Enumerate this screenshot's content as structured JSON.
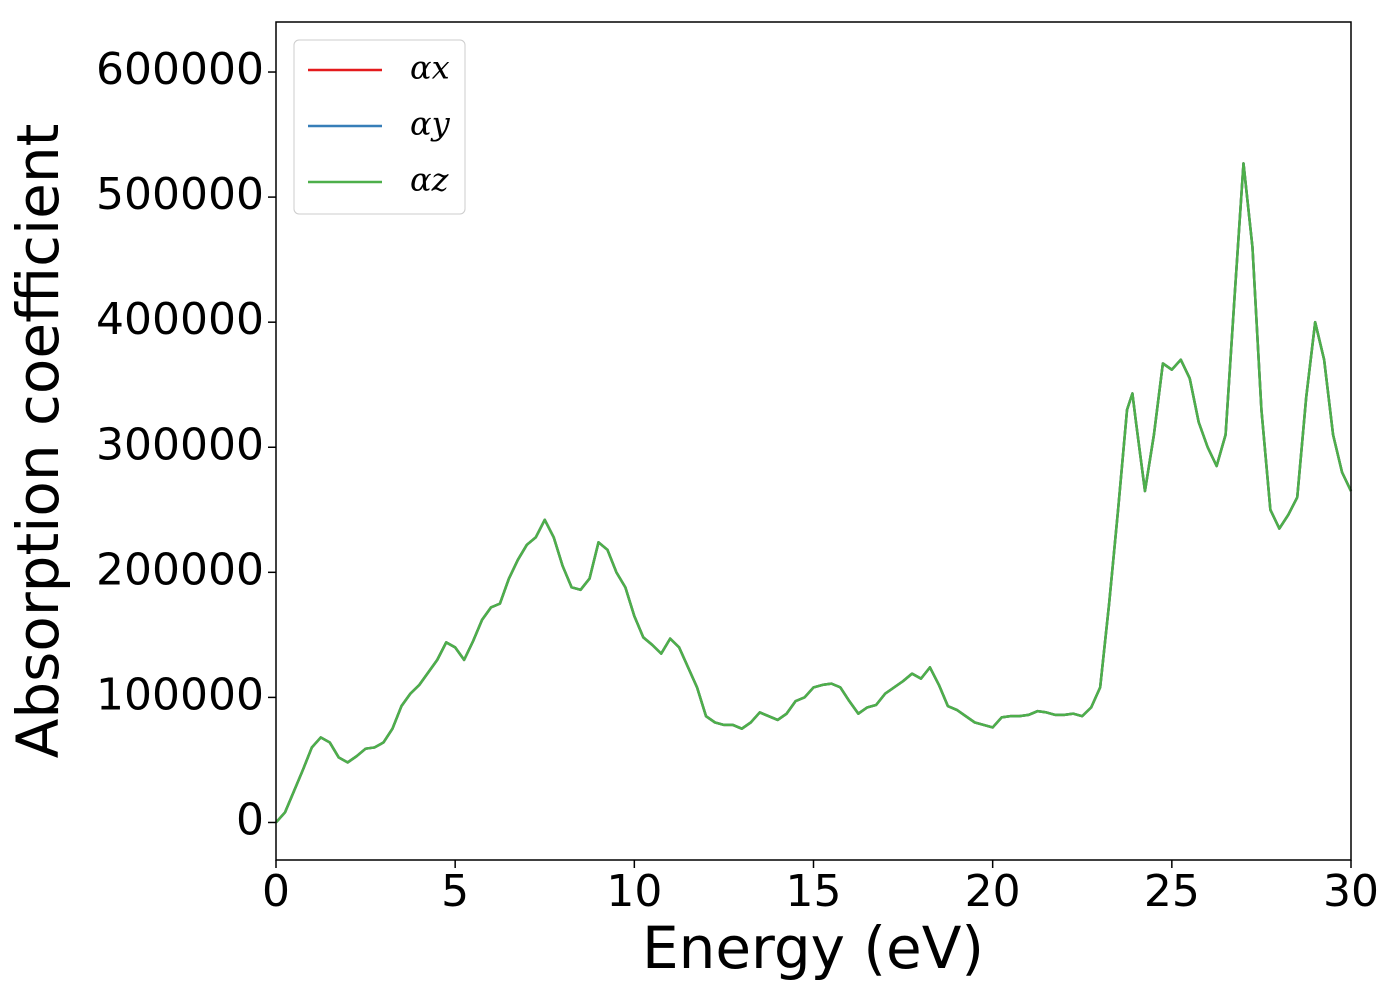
{
  "chart_data": {
    "type": "line",
    "xlabel": "Energy (eV)",
    "ylabel": "Absorption coefficient",
    "xlim": [
      0,
      30
    ],
    "ylim": [
      -30000,
      640000
    ],
    "xticks": [
      0,
      5,
      10,
      15,
      20,
      25,
      30
    ],
    "yticks": [
      0,
      100000,
      200000,
      300000,
      400000,
      500000,
      600000
    ],
    "legend": "upper left",
    "x": [
      0,
      0.25,
      0.5,
      0.75,
      1,
      1.25,
      1.5,
      1.75,
      2,
      2.25,
      2.5,
      2.75,
      3,
      3.25,
      3.5,
      3.75,
      4,
      4.25,
      4.5,
      4.75,
      5,
      5.25,
      5.5,
      5.75,
      6,
      6.25,
      6.5,
      6.75,
      7,
      7.25,
      7.5,
      7.75,
      8,
      8.25,
      8.5,
      8.75,
      9,
      9.25,
      9.5,
      9.75,
      10,
      10.25,
      10.5,
      10.75,
      11,
      11.25,
      11.5,
      11.75,
      12,
      12.25,
      12.5,
      12.75,
      13,
      13.25,
      13.5,
      13.75,
      14,
      14.25,
      14.5,
      14.75,
      15,
      15.25,
      15.5,
      15.75,
      16,
      16.25,
      16.5,
      16.75,
      17,
      17.25,
      17.5,
      17.75,
      18,
      18.25,
      18.5,
      18.75,
      19,
      19.25,
      19.5,
      19.75,
      20,
      20.25,
      20.5,
      20.75,
      21,
      21.25,
      21.5,
      21.75,
      22,
      22.25,
      22.5,
      22.75,
      23,
      23.25,
      23.5,
      23.75,
      23.9,
      24,
      24.25,
      24.5,
      24.75,
      25,
      25.25,
      25.5,
      25.75,
      26,
      26.25,
      26.5,
      26.75,
      27,
      27.25,
      27.5,
      27.75,
      28,
      28.25,
      28.5,
      28.75,
      29,
      29.25,
      29.5,
      29.75,
      30
    ],
    "series": [
      {
        "name": "αx",
        "color": "#e41a1c",
        "values": [
          0,
          8000,
          25000,
          42000,
          60000,
          68000,
          64000,
          52000,
          48000,
          53000,
          59000,
          60000,
          64000,
          75000,
          93000,
          103000,
          110000,
          120000,
          130000,
          144000,
          140000,
          130000,
          145000,
          162000,
          172000,
          175000,
          195000,
          210000,
          222000,
          228000,
          242000,
          228000,
          205000,
          188000,
          186000,
          195000,
          224000,
          218000,
          200000,
          188000,
          165000,
          148000,
          142000,
          135000,
          147000,
          140000,
          124000,
          108000,
          85000,
          80000,
          78000,
          78000,
          75000,
          80000,
          88000,
          85000,
          82000,
          87000,
          97000,
          100000,
          108000,
          110000,
          111000,
          108000,
          97000,
          87000,
          92000,
          94000,
          103000,
          108000,
          113000,
          119000,
          115000,
          124000,
          110000,
          93000,
          90000,
          85000,
          80000,
          78000,
          76000,
          84000,
          85000,
          85000,
          86000,
          89000,
          88000,
          86000,
          86000,
          87000,
          85000,
          92000,
          108000,
          175000,
          250000,
          330000,
          343000,
          320000,
          265000,
          310000,
          367000,
          362000,
          370000,
          355000,
          320000,
          300000,
          285000,
          310000,
          420000,
          527000,
          460000,
          330000,
          250000,
          235000,
          246000,
          260000,
          340000,
          400000,
          370000,
          310000,
          280000,
          265000
        ]
      },
      {
        "name": "αy",
        "color": "#377eb8",
        "values": [
          0,
          8000,
          25000,
          42000,
          60000,
          68000,
          64000,
          52000,
          48000,
          53000,
          59000,
          60000,
          64000,
          75000,
          93000,
          103000,
          110000,
          120000,
          130000,
          144000,
          140000,
          130000,
          145000,
          162000,
          172000,
          175000,
          195000,
          210000,
          222000,
          228000,
          242000,
          228000,
          205000,
          188000,
          186000,
          195000,
          224000,
          218000,
          200000,
          188000,
          165000,
          148000,
          142000,
          135000,
          147000,
          140000,
          124000,
          108000,
          85000,
          80000,
          78000,
          78000,
          75000,
          80000,
          88000,
          85000,
          82000,
          87000,
          97000,
          100000,
          108000,
          110000,
          111000,
          108000,
          97000,
          87000,
          92000,
          94000,
          103000,
          108000,
          113000,
          119000,
          115000,
          124000,
          110000,
          93000,
          90000,
          85000,
          80000,
          78000,
          76000,
          84000,
          85000,
          85000,
          86000,
          89000,
          88000,
          86000,
          86000,
          87000,
          85000,
          92000,
          108000,
          175000,
          250000,
          330000,
          343000,
          320000,
          265000,
          310000,
          367000,
          362000,
          370000,
          355000,
          320000,
          300000,
          285000,
          310000,
          420000,
          527000,
          460000,
          330000,
          250000,
          235000,
          246000,
          260000,
          340000,
          400000,
          370000,
          310000,
          280000,
          265000
        ]
      },
      {
        "name": "αz",
        "color": "#4daf4a",
        "values": [
          0,
          8000,
          25000,
          42000,
          60000,
          68000,
          64000,
          52000,
          48000,
          53000,
          59000,
          60000,
          64000,
          75000,
          93000,
          103000,
          110000,
          120000,
          130000,
          144000,
          140000,
          130000,
          145000,
          162000,
          172000,
          175000,
          195000,
          210000,
          222000,
          228000,
          242000,
          228000,
          205000,
          188000,
          186000,
          195000,
          224000,
          218000,
          200000,
          188000,
          165000,
          148000,
          142000,
          135000,
          147000,
          140000,
          124000,
          108000,
          85000,
          80000,
          78000,
          78000,
          75000,
          80000,
          88000,
          85000,
          82000,
          87000,
          97000,
          100000,
          108000,
          110000,
          111000,
          108000,
          97000,
          87000,
          92000,
          94000,
          103000,
          108000,
          113000,
          119000,
          115000,
          124000,
          110000,
          93000,
          90000,
          85000,
          80000,
          78000,
          76000,
          84000,
          85000,
          85000,
          86000,
          89000,
          88000,
          86000,
          86000,
          87000,
          85000,
          92000,
          108000,
          175000,
          250000,
          330000,
          343000,
          320000,
          265000,
          310000,
          367000,
          362000,
          370000,
          355000,
          320000,
          300000,
          285000,
          310000,
          420000,
          527000,
          460000,
          330000,
          250000,
          235000,
          246000,
          260000,
          340000,
          400000,
          370000,
          310000,
          280000,
          265000
        ]
      }
    ]
  }
}
